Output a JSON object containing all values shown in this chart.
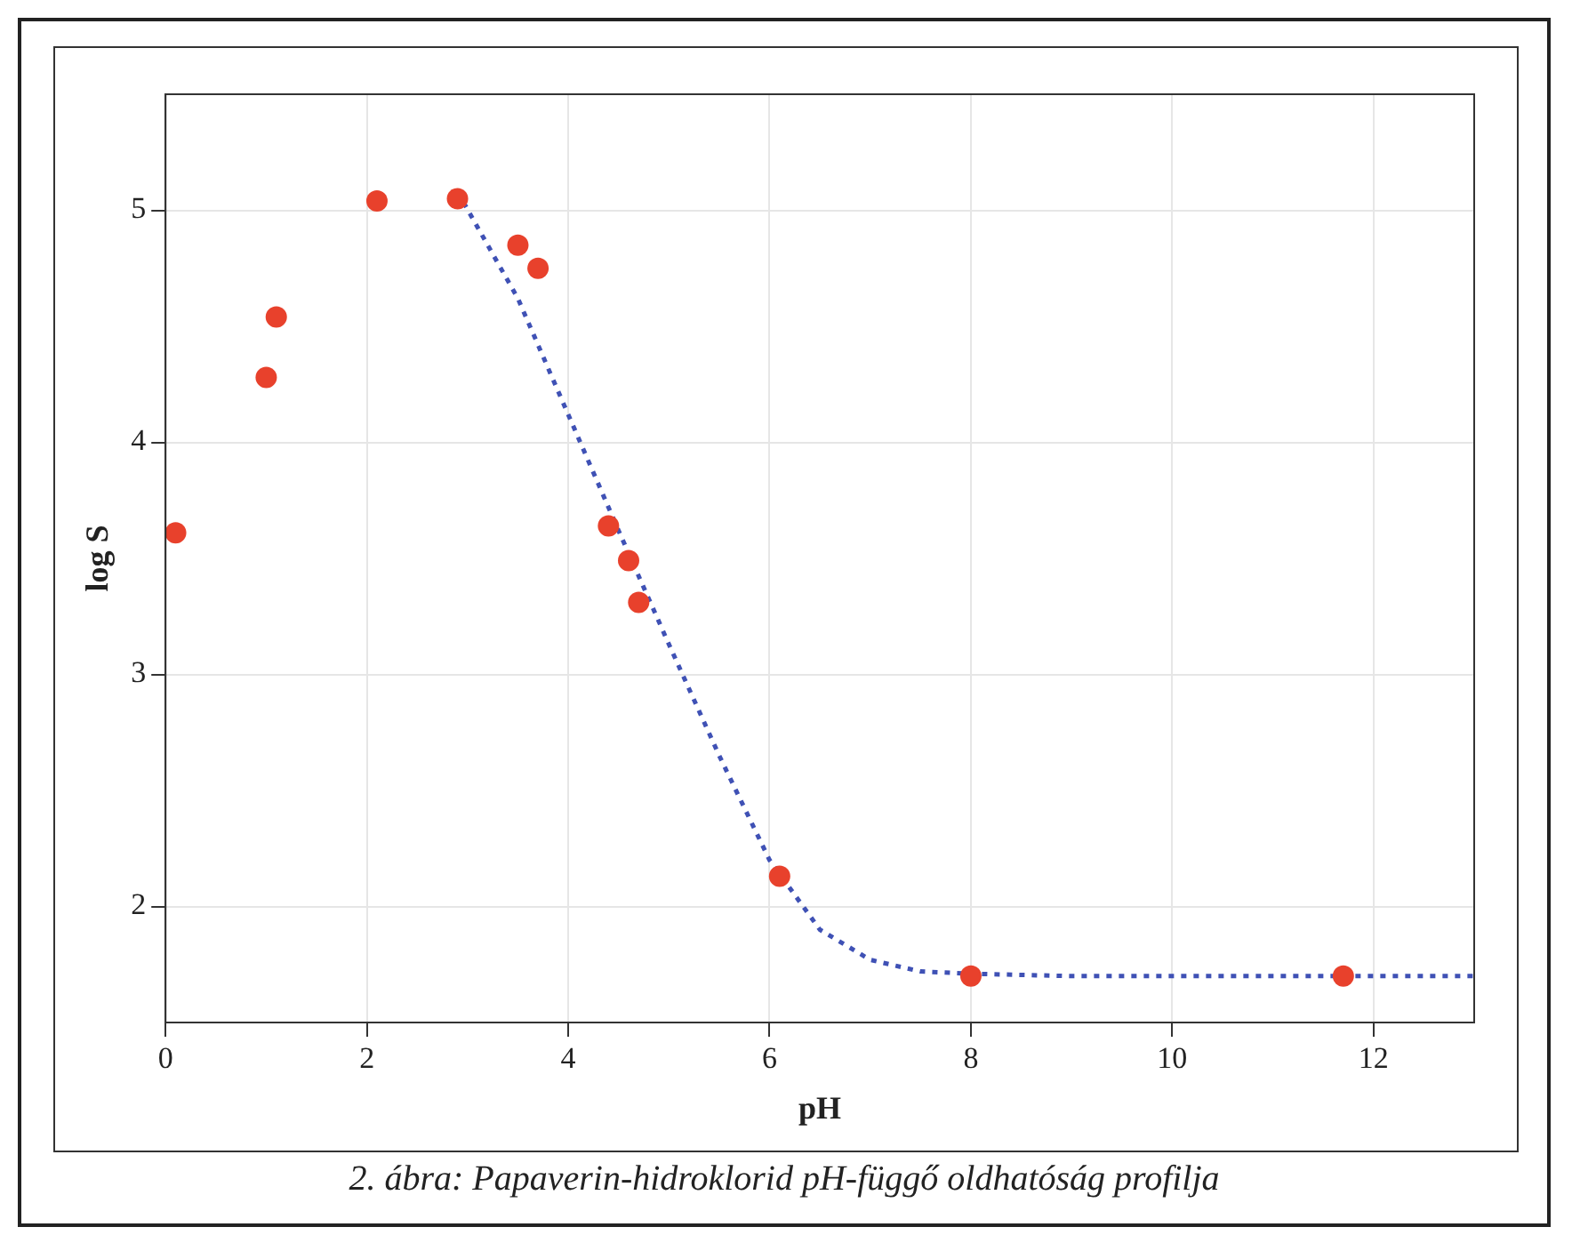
{
  "chart_data": {
    "type": "scatter",
    "xlabel": "pH",
    "ylabel": "log S",
    "xlim": [
      0,
      13
    ],
    "xticks": [
      0,
      2,
      4,
      6,
      8,
      10,
      12
    ],
    "ylim": [
      1.5,
      5.5
    ],
    "yticks": [
      2,
      3,
      4,
      5
    ],
    "grid": true,
    "legend": false,
    "annotations": [
      "2. ábra: Papaverin-hidroklorid pH-függő oldhatóság profilja"
    ],
    "series": [
      {
        "type": "scatter",
        "color": "#e8412c",
        "marker": "circle",
        "x": [
          0.1,
          1.0,
          1.1,
          2.1,
          2.9,
          3.5,
          3.7,
          4.4,
          4.6,
          4.7,
          6.1,
          8.0,
          11.7
        ],
        "values": [
          3.61,
          4.28,
          4.54,
          5.04,
          5.05,
          4.85,
          4.75,
          3.64,
          3.49,
          3.31,
          2.13,
          1.7,
          1.7
        ]
      },
      {
        "type": "line",
        "color": "#3f51b5",
        "marker": "none",
        "line_style": "dotted",
        "x": [
          2.9,
          3.5,
          4.0,
          4.5,
          5.0,
          5.5,
          6.0,
          6.5,
          7.0,
          7.5,
          8.0,
          9.0,
          10.0,
          11.0,
          12.0,
          13.0
        ],
        "values": [
          5.08,
          4.62,
          4.12,
          3.62,
          3.13,
          2.65,
          2.2,
          1.9,
          1.77,
          1.72,
          1.71,
          1.7,
          1.7,
          1.7,
          1.7,
          1.7
        ]
      }
    ]
  }
}
